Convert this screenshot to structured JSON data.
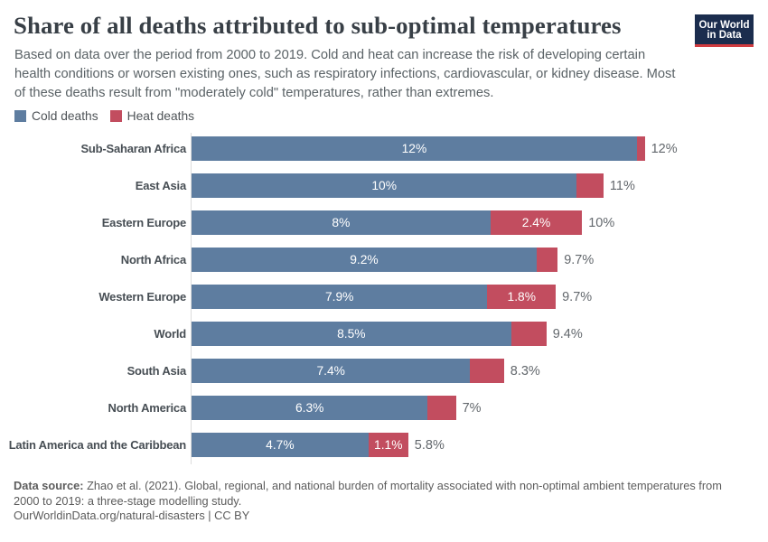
{
  "header": {
    "title": "Share of all deaths attributed to sub-optimal temperatures",
    "logo_line1": "Our World",
    "logo_line2": "in Data"
  },
  "subtitle_lines": [
    "Based on data over the period from 2000 to 2019. Cold and heat can increase the risk of developing certain",
    "health conditions or worsen existing ones, such as respiratory infections, cardiovascular, or kidney disease. Most",
    "of these deaths result from \"moderately cold\" temperatures, rather than extremes."
  ],
  "legend": {
    "items": [
      {
        "label": "Cold deaths",
        "color": "#5e7da0"
      },
      {
        "label": "Heat deaths",
        "color": "#c24d5f"
      }
    ]
  },
  "colors": {
    "cold": "#5e7da0",
    "heat": "#c24d5f",
    "logo_navy": "#1b2d4e",
    "logo_red": "#d13c40"
  },
  "chart_data": {
    "type": "bar",
    "orientation": "horizontal",
    "unit": "%",
    "categories": [
      "Sub-Saharan Africa",
      "East Asia",
      "Eastern Europe",
      "North Africa",
      "Western Europe",
      "World",
      "South Asia",
      "North America",
      "Latin America and the Caribbean"
    ],
    "series": [
      {
        "name": "Cold deaths",
        "values": [
          11.86,
          10.26,
          7.96,
          9.19,
          7.88,
          8.51,
          7.42,
          6.29,
          4.71
        ]
      },
      {
        "name": "Heat deaths",
        "values": [
          0.21,
          0.71,
          2.44,
          0.56,
          1.82,
          0.94,
          0.9,
          0.75,
          1.06
        ]
      }
    ],
    "bar_labels": {
      "cold": [
        "12%",
        "10%",
        "8%",
        "9.2%",
        "7.9%",
        "8.5%",
        "7.4%",
        "6.3%",
        "4.7%"
      ],
      "heat": [
        null,
        null,
        "2.4%",
        null,
        "1.8%",
        null,
        null,
        null,
        "1.1%"
      ],
      "total": [
        "12%",
        "11%",
        "10%",
        "9.7%",
        "9.7%",
        "9.4%",
        "8.3%",
        "7%",
        "5.8%"
      ]
    },
    "xlim": [
      0,
      15.4
    ]
  },
  "footer": {
    "datasource_label": "Data source:",
    "datasource_lines": [
      "Zhao et al. (2021). Global, regional, and national burden of mortality associated with non-optimal ambient temperatures from",
      "2000 to 2019: a three-stage modelling study."
    ],
    "origin": "OurWorldinData.org/natural-disasters | CC BY"
  }
}
